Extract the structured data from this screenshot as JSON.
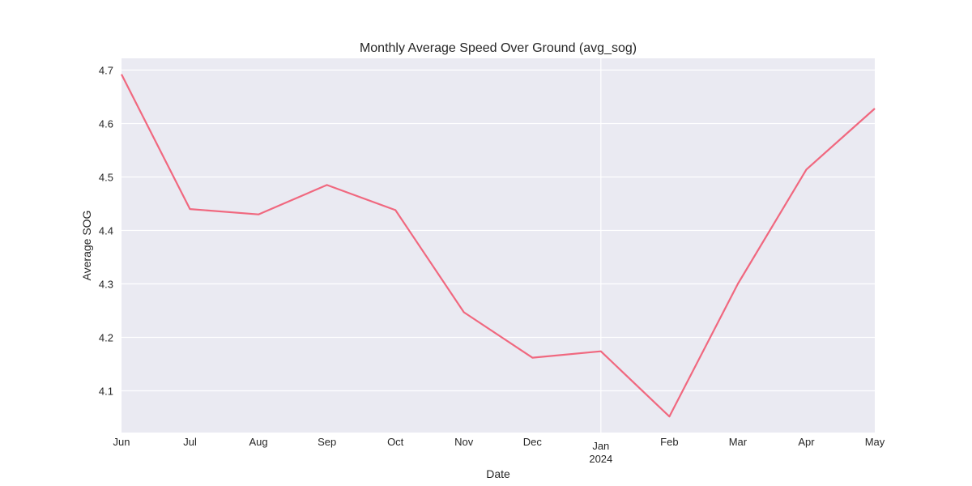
{
  "chart_data": {
    "type": "line",
    "title": "Monthly Average Speed Over Ground (avg_sog)",
    "xlabel": "Date",
    "ylabel": "Average SOG",
    "x": [
      "2023-06",
      "2023-07",
      "2023-08",
      "2023-09",
      "2023-10",
      "2023-11",
      "2023-12",
      "2024-01",
      "2024-02",
      "2024-03",
      "2024-04",
      "2024-05"
    ],
    "x_tick_labels": [
      {
        "label": "Jun",
        "sub": ""
      },
      {
        "label": "Jul",
        "sub": ""
      },
      {
        "label": "Aug",
        "sub": ""
      },
      {
        "label": "Sep",
        "sub": ""
      },
      {
        "label": "Oct",
        "sub": ""
      },
      {
        "label": "Nov",
        "sub": ""
      },
      {
        "label": "Dec",
        "sub": ""
      },
      {
        "label": "Jan",
        "sub": "2024"
      },
      {
        "label": "Feb",
        "sub": ""
      },
      {
        "label": "Mar",
        "sub": ""
      },
      {
        "label": "Apr",
        "sub": ""
      },
      {
        "label": "May",
        "sub": ""
      }
    ],
    "series": [
      {
        "values": [
          4.692,
          4.44,
          4.43,
          4.485,
          4.438,
          4.247,
          4.162,
          4.174,
          4.052,
          4.3,
          4.514,
          4.628
        ],
        "color": "#f0687f"
      }
    ],
    "ylim": [
      4.022,
      4.722
    ],
    "y_ticks": [
      4.1,
      4.2,
      4.3,
      4.4,
      4.5,
      4.6,
      4.7
    ],
    "y_tick_labels": [
      "4.1",
      "4.2",
      "4.3",
      "4.4",
      "4.5",
      "4.6",
      "4.7"
    ],
    "major_x_gridline": "2024-01",
    "grid": true,
    "background_color": "#eaeaf2",
    "grid_color": "#ffffff"
  }
}
